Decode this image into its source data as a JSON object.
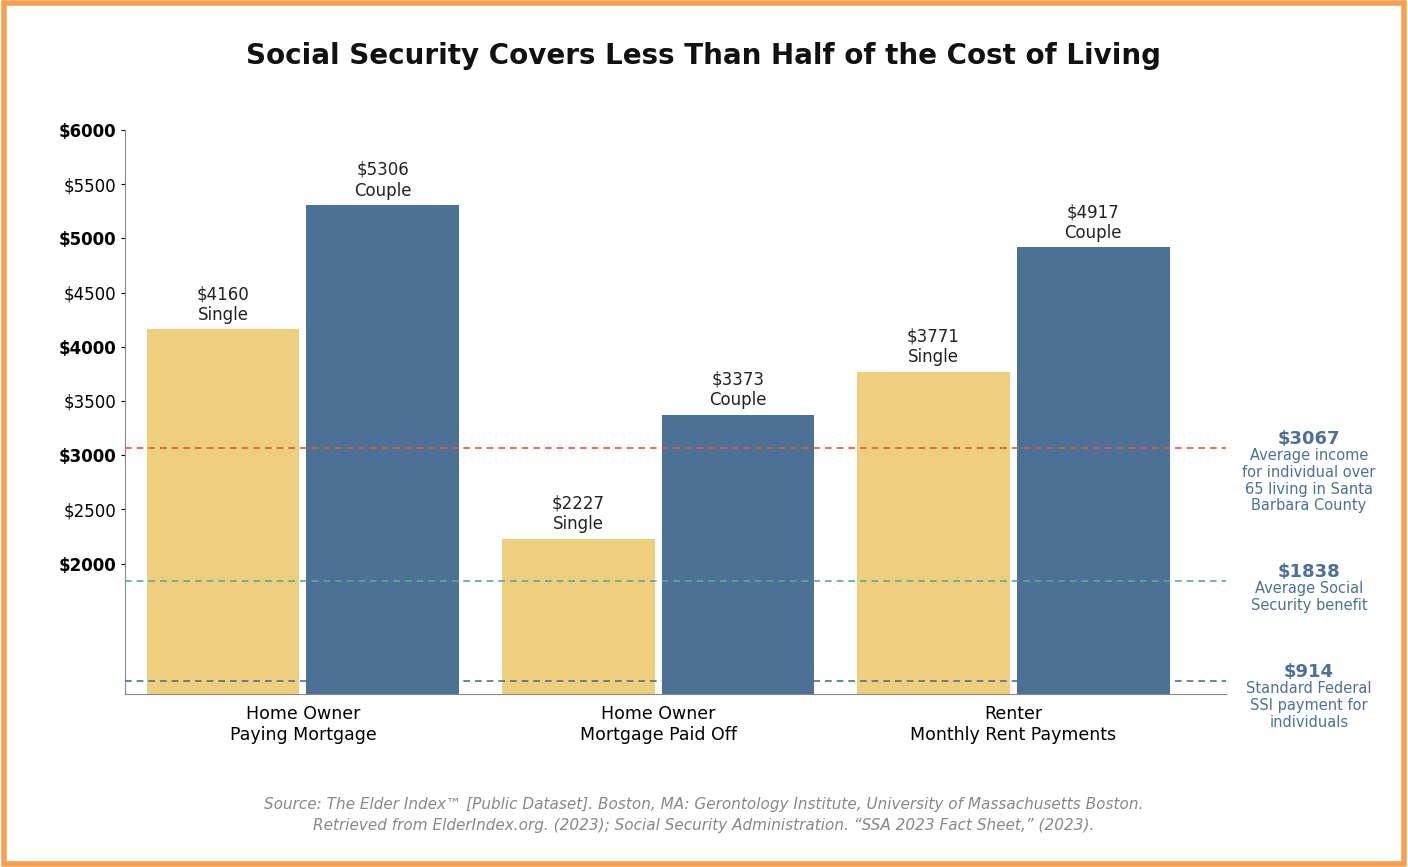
{
  "chart_data": {
    "type": "bar",
    "title": "Social Security Covers Less Than Half of the Cost of Living",
    "categories": [
      "Home Owner\nPaying Mortgage",
      "Home Owner\nMortgage Paid Off",
      "Renter\nMonthly Rent Payments"
    ],
    "series": [
      {
        "name": "Single",
        "color": "#EDCF7D",
        "values": [
          4160,
          2227,
          3771
        ],
        "value_labels": [
          "$4160\nSingle",
          "$2227\nSingle",
          "$3771\nSingle"
        ]
      },
      {
        "name": "Couple",
        "color": "#4D7195",
        "values": [
          5306,
          3373,
          4917
        ],
        "value_labels": [
          "$5306\nCouple",
          "$3373\nCouple",
          "$4917\nCouple"
        ]
      }
    ],
    "data_labels": true,
    "ylim": [
      800,
      6000
    ],
    "yticks": [
      {
        "value": 2000,
        "label": "$2000"
      },
      {
        "value": 2500,
        "label": "$2500"
      },
      {
        "value": 3000,
        "label": "$3000"
      },
      {
        "value": 3500,
        "label": "$3500"
      },
      {
        "value": 4000,
        "label": "$4000"
      },
      {
        "value": 4500,
        "label": "$4500"
      },
      {
        "value": 5000,
        "label": "$5000"
      },
      {
        "value": 5500,
        "label": "$5500"
      },
      {
        "value": 6000,
        "label": "$6000"
      }
    ],
    "grid": false,
    "reference_lines": [
      {
        "value": 3067,
        "label": "$3067",
        "text": "Average income\nfor individual over\n65 living in Santa\nBarbara County",
        "color": "#E8553F"
      },
      {
        "value": 1838,
        "label": "$1838",
        "text": "Average Social\nSecurity benefit",
        "color": "#5BA89C"
      },
      {
        "value": 914,
        "label": "$914",
        "text": "Standard Federal\nSSI payment for\nindividuals",
        "color": "#4D7195"
      }
    ],
    "source": "Source: The Elder Index™ [Public Dataset]. Boston, MA: Gerontology Institute, University of Massachusetts Boston.\nRetrieved from ElderIndex.org. (2023); Social Security Administration. “SSA 2023 Fact Sheet,” (2023)."
  }
}
